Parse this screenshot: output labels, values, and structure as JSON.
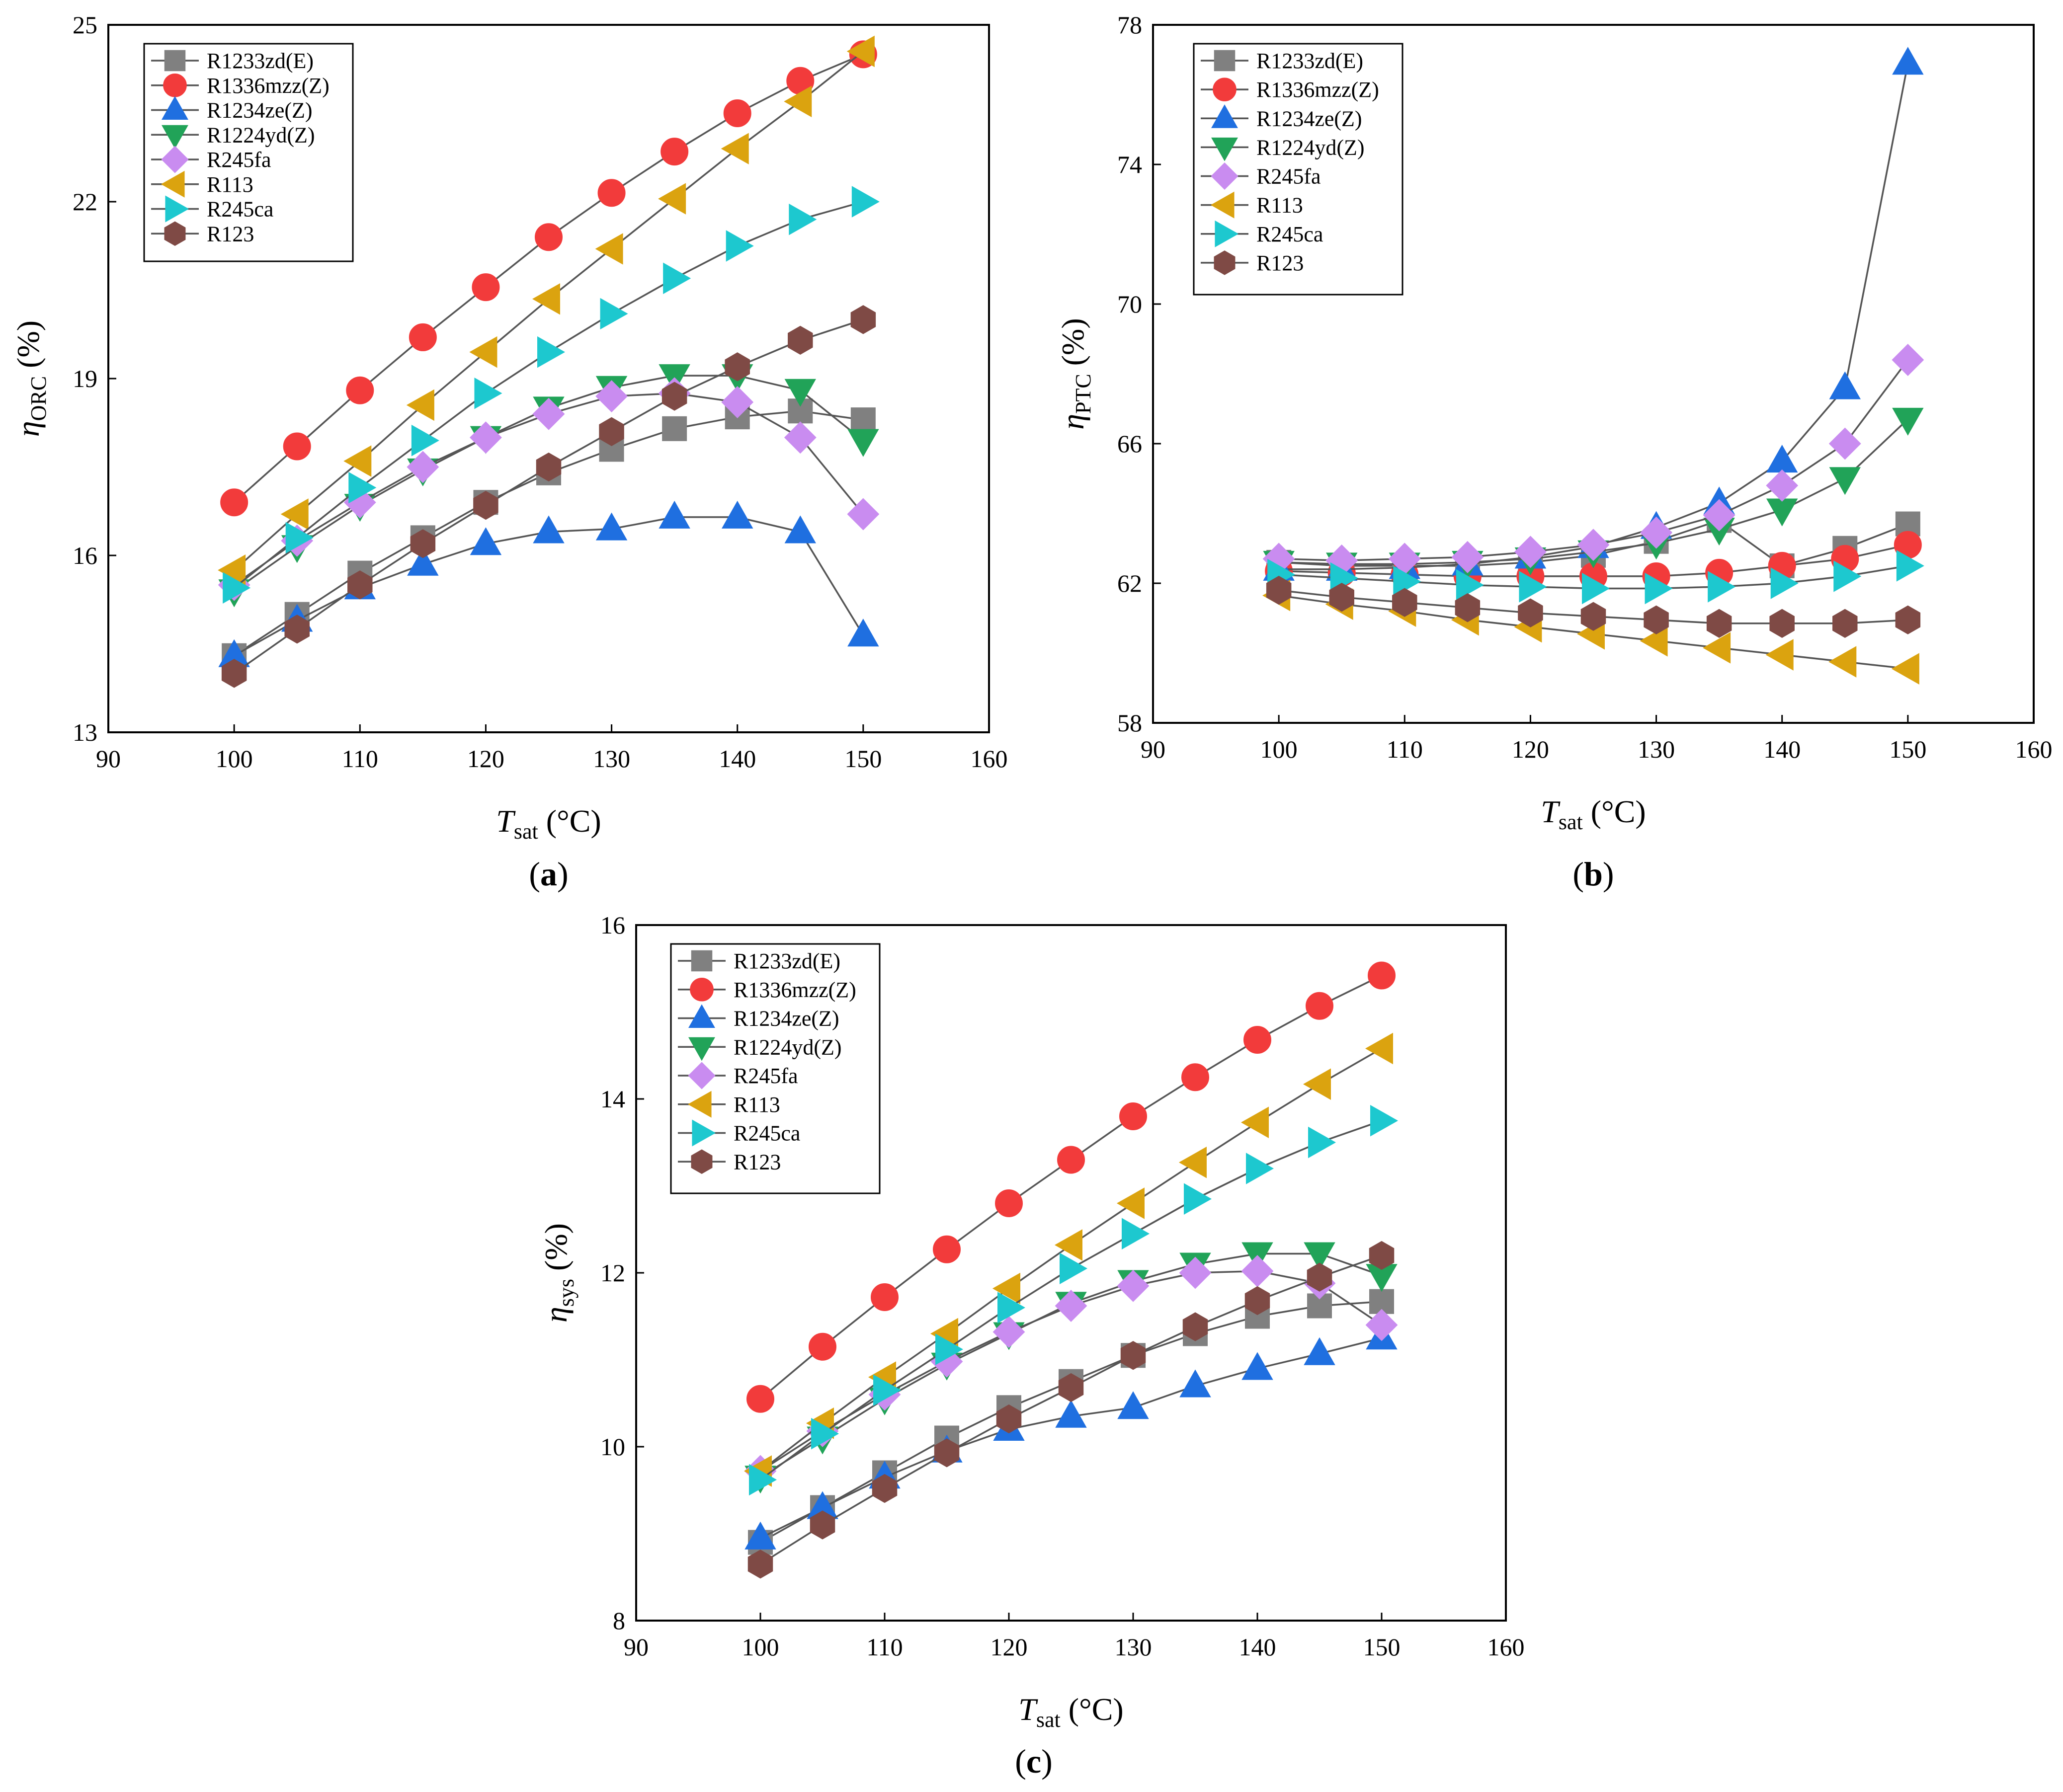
{
  "colors": {
    "R1233zd(E)": "#808080",
    "R1336mzz(Z)": "#f23b3b",
    "R1234ze(Z)": "#1f6fe0",
    "R1224yd(Z)": "#21a358",
    "R245fa": "#c98cf0",
    "R113": "#dba30f",
    "R245ca": "#1dc8cf",
    "R123": "#7f4a45",
    "line": "#555555"
  },
  "markers": {
    "R1233zd(E)": "square",
    "R1336mzz(Z)": "circle",
    "R1234ze(Z)": "triangle-up",
    "R1224yd(Z)": "triangle-down",
    "R245fa": "diamond",
    "R113": "triangle-left",
    "R245ca": "triangle-right",
    "R123": "hexagon"
  },
  "chart_data": [
    {
      "type": "line",
      "panel_label": "(a)",
      "xlabel_main": "T",
      "xlabel_sub": "sat",
      "xlabel_unit": " (°C)",
      "ylabel_main": "η",
      "ylabel_sub": "ORC",
      "ylabel_unit": " (%)",
      "xlim": [
        90,
        160
      ],
      "ylim": [
        13,
        25
      ],
      "xticks": [
        90,
        100,
        110,
        120,
        130,
        140,
        150,
        160
      ],
      "yticks": [
        13,
        16,
        19,
        22,
        25
      ],
      "legend": "top-left",
      "x": [
        100,
        105,
        110,
        115,
        120,
        125,
        130,
        135,
        140,
        145,
        150
      ],
      "series": [
        {
          "name": "R1233zd(E)",
          "values": [
            14.3,
            15.0,
            15.7,
            16.3,
            16.9,
            17.4,
            17.8,
            18.15,
            18.35,
            18.45,
            18.3
          ]
        },
        {
          "name": "R1336mzz(Z)",
          "values": [
            16.9,
            17.85,
            18.8,
            19.7,
            20.55,
            21.4,
            22.15,
            22.85,
            23.5,
            24.05,
            24.5
          ]
        },
        {
          "name": "R1234ze(Z)",
          "values": [
            14.3,
            14.9,
            15.45,
            15.85,
            16.2,
            16.4,
            16.45,
            16.65,
            16.65,
            16.4,
            14.65
          ]
        },
        {
          "name": "R1224yd(Z)",
          "values": [
            15.4,
            16.15,
            16.85,
            17.45,
            18.0,
            18.5,
            18.85,
            19.05,
            19.05,
            18.8,
            17.95
          ]
        },
        {
          "name": "R245fa",
          "values": [
            15.5,
            16.25,
            16.9,
            17.5,
            18.0,
            18.4,
            18.7,
            18.75,
            18.6,
            18.0,
            16.7
          ]
        },
        {
          "name": "R113",
          "values": [
            15.75,
            16.7,
            17.6,
            18.55,
            19.45,
            20.35,
            21.2,
            22.05,
            22.9,
            23.7,
            24.55
          ]
        },
        {
          "name": "R245ca",
          "values": [
            15.45,
            16.3,
            17.15,
            17.95,
            18.75,
            19.45,
            20.1,
            20.7,
            21.25,
            21.7,
            22.0
          ]
        },
        {
          "name": "R123",
          "values": [
            14.0,
            14.75,
            15.5,
            16.2,
            16.85,
            17.5,
            18.1,
            18.7,
            19.2,
            19.65,
            20.0
          ]
        }
      ]
    },
    {
      "type": "line",
      "panel_label": "(b)",
      "xlabel_main": "T",
      "xlabel_sub": "sat",
      "xlabel_unit": " (°C)",
      "ylabel_main": "η",
      "ylabel_sub": "PTC",
      "ylabel_unit": " (%)",
      "xlim": [
        90,
        160
      ],
      "ylim": [
        58,
        78
      ],
      "xticks": [
        90,
        100,
        110,
        120,
        130,
        140,
        150,
        160
      ],
      "yticks": [
        58,
        62,
        66,
        70,
        74,
        78
      ],
      "legend": "top-left",
      "x": [
        100,
        105,
        110,
        115,
        120,
        125,
        130,
        135,
        140,
        145,
        150
      ],
      "series": [
        {
          "name": "R1233zd(E)",
          "values": [
            62.6,
            62.5,
            62.5,
            62.5,
            62.6,
            62.8,
            63.2,
            63.8,
            62.5,
            63.0,
            63.7
          ]
        },
        {
          "name": "R1336mzz(Z)",
          "values": [
            62.35,
            62.3,
            62.25,
            62.2,
            62.2,
            62.2,
            62.2,
            62.3,
            62.5,
            62.7,
            63.1
          ]
        },
        {
          "name": "R1234ze(Z)",
          "values": [
            62.4,
            62.4,
            62.45,
            62.55,
            62.75,
            63.05,
            63.6,
            64.3,
            65.5,
            67.6,
            76.9
          ]
        },
        {
          "name": "R1224yd(Z)",
          "values": [
            62.6,
            62.55,
            62.55,
            62.6,
            62.7,
            62.9,
            63.15,
            63.55,
            64.1,
            65.0,
            66.7
          ]
        },
        {
          "name": "R245fa",
          "values": [
            62.7,
            62.65,
            62.7,
            62.75,
            62.9,
            63.1,
            63.45,
            63.95,
            64.8,
            66.0,
            68.4
          ]
        },
        {
          "name": "R113",
          "values": [
            61.65,
            61.4,
            61.2,
            60.95,
            60.75,
            60.55,
            60.35,
            60.15,
            59.95,
            59.75,
            59.55
          ]
        },
        {
          "name": "R245ca",
          "values": [
            62.25,
            62.15,
            62.05,
            61.95,
            61.9,
            61.85,
            61.85,
            61.9,
            62.0,
            62.2,
            62.5
          ]
        },
        {
          "name": "R123",
          "values": [
            61.8,
            61.6,
            61.45,
            61.3,
            61.15,
            61.05,
            60.95,
            60.85,
            60.85,
            60.85,
            60.95
          ]
        }
      ]
    },
    {
      "type": "line",
      "panel_label": "(c)",
      "xlabel_main": "T",
      "xlabel_sub": "sat",
      "xlabel_unit": " (°C)",
      "ylabel_main": "η",
      "ylabel_sub": "sys",
      "ylabel_unit": " (%)",
      "xlim": [
        90,
        160
      ],
      "ylim": [
        8,
        16
      ],
      "xticks": [
        90,
        100,
        110,
        120,
        130,
        140,
        150,
        160
      ],
      "yticks": [
        8,
        10,
        12,
        14,
        16
      ],
      "legend": "top-left",
      "x": [
        100,
        105,
        110,
        115,
        120,
        125,
        130,
        135,
        140,
        145,
        150
      ],
      "series": [
        {
          "name": "R1233zd(E)",
          "values": [
            8.9,
            9.3,
            9.7,
            10.1,
            10.45,
            10.75,
            11.05,
            11.3,
            11.5,
            11.62,
            11.67
          ]
        },
        {
          "name": "R1336mzz(Z)",
          "values": [
            10.55,
            11.15,
            11.72,
            12.27,
            12.8,
            13.3,
            13.8,
            14.25,
            14.68,
            15.07,
            15.42
          ]
        },
        {
          "name": "R1234ze(Z)",
          "values": [
            8.95,
            9.3,
            9.65,
            9.95,
            10.2,
            10.35,
            10.45,
            10.7,
            10.9,
            11.07,
            11.25
          ]
        },
        {
          "name": "R1224yd(Z)",
          "values": [
            9.65,
            10.1,
            10.55,
            10.95,
            11.3,
            11.65,
            11.9,
            12.1,
            12.22,
            12.22,
            11.97
          ]
        },
        {
          "name": "R245fa",
          "values": [
            9.72,
            10.18,
            10.6,
            10.98,
            11.32,
            11.62,
            11.85,
            12.0,
            12.02,
            11.88,
            11.4
          ]
        },
        {
          "name": "R113",
          "values": [
            9.72,
            10.27,
            10.8,
            11.3,
            11.82,
            12.32,
            12.8,
            13.27,
            13.73,
            14.17,
            14.58
          ]
        },
        {
          "name": "R245ca",
          "values": [
            9.62,
            10.15,
            10.65,
            11.12,
            11.6,
            12.05,
            12.45,
            12.85,
            13.2,
            13.5,
            13.75
          ]
        },
        {
          "name": "R123",
          "values": [
            8.65,
            9.1,
            9.52,
            9.93,
            10.32,
            10.68,
            11.05,
            11.38,
            11.68,
            11.95,
            12.2
          ]
        }
      ]
    }
  ]
}
